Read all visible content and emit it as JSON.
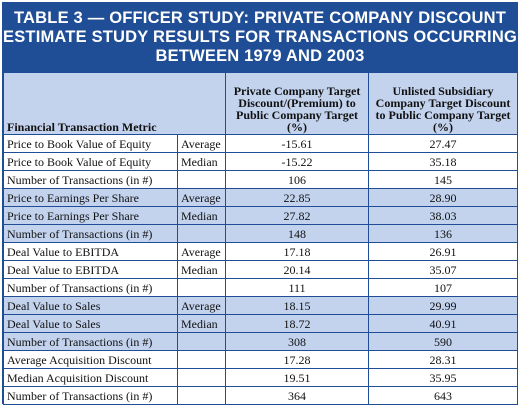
{
  "title": {
    "line1": "TABLE 3 — OFFICER STUDY: PRIVATE COMPANY DISCOUNT",
    "line2": "ESTIMATE STUDY RESULTS FOR TRANSACTIONS OCCURRING",
    "line3": "BETWEEN 1979 AND 2003"
  },
  "headers": {
    "metric": "Financial Transaction Metric",
    "private": "Private Company Target Discount/(Premium) to Public Company Target (%)",
    "unlisted": "Unlisted Subsidiary Company Target Discount to Public Company Target (%)"
  },
  "rows": [
    {
      "metric": "Price to Book Value of Equity",
      "stat": "Average",
      "private": "-15.61",
      "unlisted": "27.47",
      "shade": false
    },
    {
      "metric": "Price to Book Value of Equity",
      "stat": "Median",
      "private": "-15.22",
      "unlisted": "35.18",
      "shade": false
    },
    {
      "metric": "Number of Transactions (in #)",
      "stat": "",
      "private": "106",
      "unlisted": "145",
      "shade": false
    },
    {
      "metric": "Price to Earnings Per Share",
      "stat": "Average",
      "private": "22.85",
      "unlisted": "28.90",
      "shade": true
    },
    {
      "metric": "Price to Earnings Per Share",
      "stat": "Median",
      "private": "27.82",
      "unlisted": "38.03",
      "shade": true
    },
    {
      "metric": "Number of Transactions (in #)",
      "stat": "",
      "private": "148",
      "unlisted": "136",
      "shade": true
    },
    {
      "metric": "Deal Value to EBITDA",
      "stat": "Average",
      "private": "17.18",
      "unlisted": "26.91",
      "shade": false
    },
    {
      "metric": "Deal Value to EBITDA",
      "stat": "Median",
      "private": "20.14",
      "unlisted": "35.07",
      "shade": false
    },
    {
      "metric": "Number of Transactions (in #)",
      "stat": "",
      "private": "111",
      "unlisted": "107",
      "shade": false
    },
    {
      "metric": "Deal Value to Sales",
      "stat": "Average",
      "private": "18.15",
      "unlisted": "29.99",
      "shade": true
    },
    {
      "metric": "Deal Value to Sales",
      "stat": "Median",
      "private": "18.72",
      "unlisted": "40.91",
      "shade": true
    },
    {
      "metric": "Number of Transactions (in #)",
      "stat": "",
      "private": "308",
      "unlisted": "590",
      "shade": true
    },
    {
      "metric": "Average Acquisition Discount",
      "stat": "",
      "private": "17.28",
      "unlisted": "28.31",
      "shade": false
    },
    {
      "metric": "Median Acquisition Discount",
      "stat": "",
      "private": "19.51",
      "unlisted": "35.95",
      "shade": false
    },
    {
      "metric": "Number of Transactions (in #)",
      "stat": "",
      "private": "364",
      "unlisted": "643",
      "shade": false
    }
  ],
  "colors": {
    "header_blue": "#1f4e96",
    "shade_blue": "#c3d3ee"
  }
}
